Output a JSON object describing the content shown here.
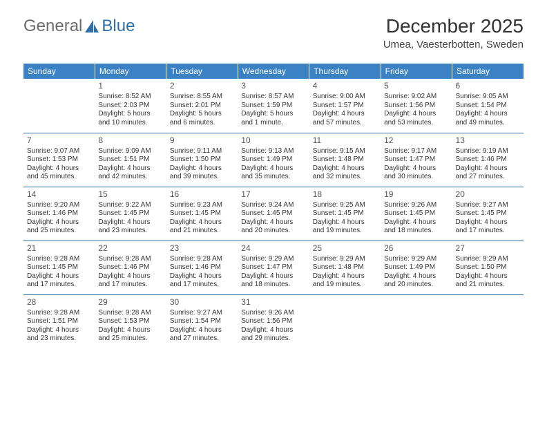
{
  "brand": {
    "part1": "General",
    "part2": "Blue"
  },
  "header": {
    "title": "December 2025",
    "location": "Umea, Vaesterbotten, Sweden"
  },
  "colors": {
    "header_bg": "#3b82c4",
    "header_fg": "#ffffff",
    "row_divider": "#2f6fa8",
    "logo_gray": "#6c6c6c",
    "logo_blue": "#2f6fa8"
  },
  "daysOfWeek": [
    "Sunday",
    "Monday",
    "Tuesday",
    "Wednesday",
    "Thursday",
    "Friday",
    "Saturday"
  ],
  "weeks": [
    [
      null,
      {
        "n": "1",
        "sr": "8:52 AM",
        "ss": "2:03 PM",
        "dl1": "Daylight: 5 hours",
        "dl2": "and 10 minutes."
      },
      {
        "n": "2",
        "sr": "8:55 AM",
        "ss": "2:01 PM",
        "dl1": "Daylight: 5 hours",
        "dl2": "and 6 minutes."
      },
      {
        "n": "3",
        "sr": "8:57 AM",
        "ss": "1:59 PM",
        "dl1": "Daylight: 5 hours",
        "dl2": "and 1 minute."
      },
      {
        "n": "4",
        "sr": "9:00 AM",
        "ss": "1:57 PM",
        "dl1": "Daylight: 4 hours",
        "dl2": "and 57 minutes."
      },
      {
        "n": "5",
        "sr": "9:02 AM",
        "ss": "1:56 PM",
        "dl1": "Daylight: 4 hours",
        "dl2": "and 53 minutes."
      },
      {
        "n": "6",
        "sr": "9:05 AM",
        "ss": "1:54 PM",
        "dl1": "Daylight: 4 hours",
        "dl2": "and 49 minutes."
      }
    ],
    [
      {
        "n": "7",
        "sr": "9:07 AM",
        "ss": "1:53 PM",
        "dl1": "Daylight: 4 hours",
        "dl2": "and 45 minutes."
      },
      {
        "n": "8",
        "sr": "9:09 AM",
        "ss": "1:51 PM",
        "dl1": "Daylight: 4 hours",
        "dl2": "and 42 minutes."
      },
      {
        "n": "9",
        "sr": "9:11 AM",
        "ss": "1:50 PM",
        "dl1": "Daylight: 4 hours",
        "dl2": "and 39 minutes."
      },
      {
        "n": "10",
        "sr": "9:13 AM",
        "ss": "1:49 PM",
        "dl1": "Daylight: 4 hours",
        "dl2": "and 35 minutes."
      },
      {
        "n": "11",
        "sr": "9:15 AM",
        "ss": "1:48 PM",
        "dl1": "Daylight: 4 hours",
        "dl2": "and 32 minutes."
      },
      {
        "n": "12",
        "sr": "9:17 AM",
        "ss": "1:47 PM",
        "dl1": "Daylight: 4 hours",
        "dl2": "and 30 minutes."
      },
      {
        "n": "13",
        "sr": "9:19 AM",
        "ss": "1:46 PM",
        "dl1": "Daylight: 4 hours",
        "dl2": "and 27 minutes."
      }
    ],
    [
      {
        "n": "14",
        "sr": "9:20 AM",
        "ss": "1:46 PM",
        "dl1": "Daylight: 4 hours",
        "dl2": "and 25 minutes."
      },
      {
        "n": "15",
        "sr": "9:22 AM",
        "ss": "1:45 PM",
        "dl1": "Daylight: 4 hours",
        "dl2": "and 23 minutes."
      },
      {
        "n": "16",
        "sr": "9:23 AM",
        "ss": "1:45 PM",
        "dl1": "Daylight: 4 hours",
        "dl2": "and 21 minutes."
      },
      {
        "n": "17",
        "sr": "9:24 AM",
        "ss": "1:45 PM",
        "dl1": "Daylight: 4 hours",
        "dl2": "and 20 minutes."
      },
      {
        "n": "18",
        "sr": "9:25 AM",
        "ss": "1:45 PM",
        "dl1": "Daylight: 4 hours",
        "dl2": "and 19 minutes."
      },
      {
        "n": "19",
        "sr": "9:26 AM",
        "ss": "1:45 PM",
        "dl1": "Daylight: 4 hours",
        "dl2": "and 18 minutes."
      },
      {
        "n": "20",
        "sr": "9:27 AM",
        "ss": "1:45 PM",
        "dl1": "Daylight: 4 hours",
        "dl2": "and 17 minutes."
      }
    ],
    [
      {
        "n": "21",
        "sr": "9:28 AM",
        "ss": "1:45 PM",
        "dl1": "Daylight: 4 hours",
        "dl2": "and 17 minutes."
      },
      {
        "n": "22",
        "sr": "9:28 AM",
        "ss": "1:46 PM",
        "dl1": "Daylight: 4 hours",
        "dl2": "and 17 minutes."
      },
      {
        "n": "23",
        "sr": "9:28 AM",
        "ss": "1:46 PM",
        "dl1": "Daylight: 4 hours",
        "dl2": "and 17 minutes."
      },
      {
        "n": "24",
        "sr": "9:29 AM",
        "ss": "1:47 PM",
        "dl1": "Daylight: 4 hours",
        "dl2": "and 18 minutes."
      },
      {
        "n": "25",
        "sr": "9:29 AM",
        "ss": "1:48 PM",
        "dl1": "Daylight: 4 hours",
        "dl2": "and 19 minutes."
      },
      {
        "n": "26",
        "sr": "9:29 AM",
        "ss": "1:49 PM",
        "dl1": "Daylight: 4 hours",
        "dl2": "and 20 minutes."
      },
      {
        "n": "27",
        "sr": "9:29 AM",
        "ss": "1:50 PM",
        "dl1": "Daylight: 4 hours",
        "dl2": "and 21 minutes."
      }
    ],
    [
      {
        "n": "28",
        "sr": "9:28 AM",
        "ss": "1:51 PM",
        "dl1": "Daylight: 4 hours",
        "dl2": "and 23 minutes."
      },
      {
        "n": "29",
        "sr": "9:28 AM",
        "ss": "1:53 PM",
        "dl1": "Daylight: 4 hours",
        "dl2": "and 25 minutes."
      },
      {
        "n": "30",
        "sr": "9:27 AM",
        "ss": "1:54 PM",
        "dl1": "Daylight: 4 hours",
        "dl2": "and 27 minutes."
      },
      {
        "n": "31",
        "sr": "9:26 AM",
        "ss": "1:56 PM",
        "dl1": "Daylight: 4 hours",
        "dl2": "and 29 minutes."
      },
      null,
      null,
      null
    ]
  ],
  "labels": {
    "sunrise": "Sunrise: ",
    "sunset": "Sunset: "
  }
}
